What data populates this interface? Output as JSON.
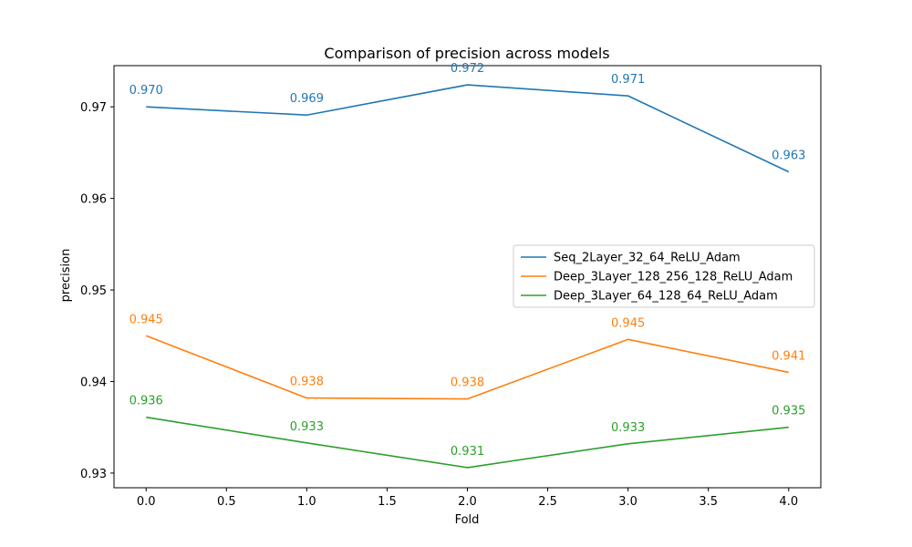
{
  "chart_data": {
    "type": "line",
    "title": "Comparison of precision across models",
    "xlabel": "Fold",
    "ylabel": "precision",
    "xlim": [
      -0.2,
      4.2
    ],
    "ylim": [
      0.9284,
      0.9745
    ],
    "xticks": [
      0.0,
      0.5,
      1.0,
      1.5,
      2.0,
      2.5,
      3.0,
      3.5,
      4.0
    ],
    "xtick_labels": [
      "0.0",
      "0.5",
      "1.0",
      "1.5",
      "2.0",
      "2.5",
      "3.0",
      "3.5",
      "4.0"
    ],
    "yticks": [
      0.93,
      0.94,
      0.95,
      0.96,
      0.97
    ],
    "ytick_labels": [
      "0.93",
      "0.94",
      "0.95",
      "0.96",
      "0.97"
    ],
    "grid": false,
    "legend_position": "center-right",
    "x": [
      0,
      1,
      2,
      3,
      4
    ],
    "series": [
      {
        "name": "Seq_2Layer_32_64_ReLU_Adam",
        "color": "#1f77b4",
        "values": [
          0.97,
          0.9691,
          0.9724,
          0.9712,
          0.9629
        ],
        "labels": [
          "0.970",
          "0.969",
          "0.972",
          "0.971",
          "0.963"
        ]
      },
      {
        "name": "Deep_3Layer_128_256_128_ReLU_Adam",
        "color": "#ff7f0e",
        "values": [
          0.945,
          0.9382,
          0.9381,
          0.9446,
          0.941
        ],
        "labels": [
          "0.945",
          "0.938",
          "0.938",
          "0.945",
          "0.941"
        ]
      },
      {
        "name": "Deep_3Layer_64_128_64_ReLU_Adam",
        "color": "#2ca02c",
        "values": [
          0.9361,
          0.9333,
          0.9306,
          0.9332,
          0.935
        ],
        "labels": [
          "0.936",
          "0.933",
          "0.931",
          "0.933",
          "0.935"
        ]
      }
    ]
  }
}
